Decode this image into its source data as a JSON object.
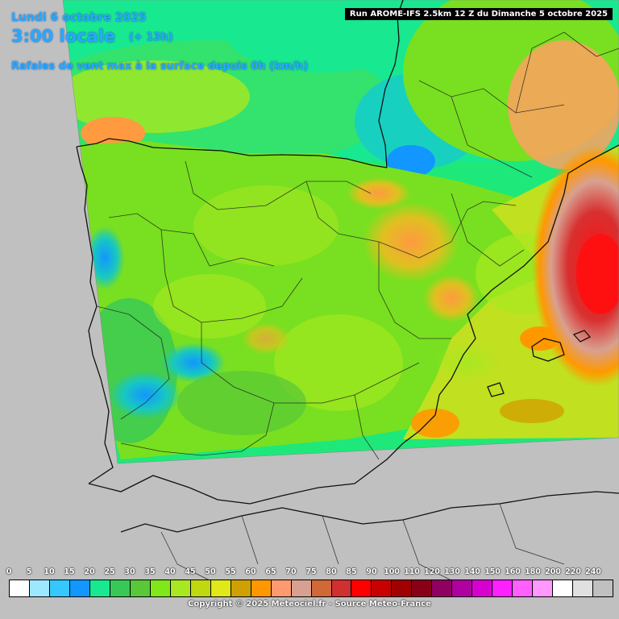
{
  "header": {
    "date": "Lundi 6 octobre 2025",
    "time": "3:00 locale",
    "lead": "(+ 13h)",
    "subtitle": "Rafales de vent max à la surface depuis 0h (km/h)"
  },
  "run_label": "Run AROME-IFS 2.5km 12 Z du Dimanche 5 octobre 2025",
  "legend": {
    "values": [
      "0",
      "5",
      "10",
      "15",
      "20",
      "25",
      "30",
      "35",
      "40",
      "45",
      "50",
      "55",
      "60",
      "65",
      "70",
      "75",
      "80",
      "85",
      "90",
      "100",
      "110",
      "120",
      "130",
      "140",
      "150",
      "160",
      "180",
      "200",
      "220",
      "240"
    ],
    "colors": [
      "#ffffff",
      "#9ee8ff",
      "#34c8ff",
      "#1296ff",
      "#18e890",
      "#38c858",
      "#58c838",
      "#80e818",
      "#a8e820",
      "#c0d810",
      "#e0e818",
      "#d0a000",
      "#ff9800",
      "#ff9a70",
      "#d8a090",
      "#d06838",
      "#d03030",
      "#ff0000",
      "#c80000",
      "#a00000",
      "#880018",
      "#900060",
      "#b000a0",
      "#d800d0",
      "#ff20ff",
      "#ff60ff",
      "#ff98ff",
      "#ffffff",
      "#e0e0e0",
      "#c0c0c0"
    ]
  },
  "copyright": "Copyright © 2025 Meteociel.fr - Source Meteo-France",
  "map_colors": {
    "sea_background": "#c0c0c0",
    "sea_forecast": "#1ee87a",
    "land_base": "#78e020",
    "border": "#101010",
    "high_gusts": "#ff1010"
  }
}
